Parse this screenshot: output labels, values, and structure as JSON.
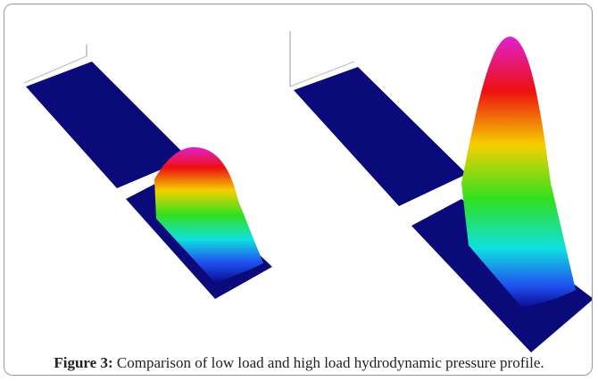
{
  "figure": {
    "label": "Figure 3:",
    "caption": "Comparison of low load and high load hydrodynamic pressure profile."
  }
}
